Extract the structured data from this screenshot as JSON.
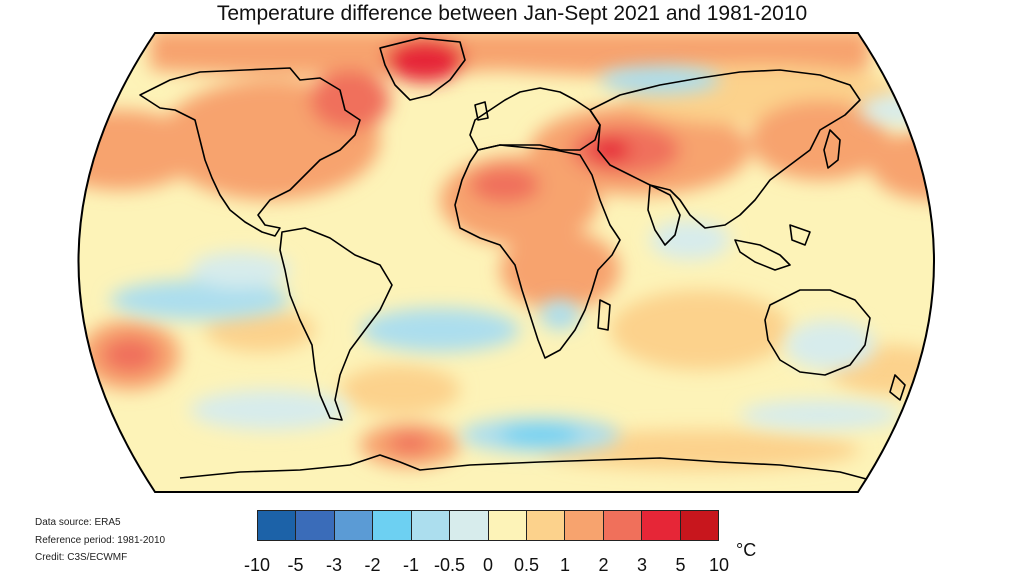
{
  "title": "Temperature difference between Jan-Sept 2021 and 1981-2010",
  "map": {
    "projection": "robinson",
    "ocean_base_color": "#fdf3b8",
    "coastline_color": "#000000"
  },
  "credits": {
    "data_source": "Data source: ERA5",
    "reference_period": "Reference period: 1981-2010",
    "credit": "Credit: C3S/ECWMF"
  },
  "legend": {
    "unit": "°C",
    "ticks": [
      "-10",
      "-5",
      "-3",
      "-2",
      "-1",
      "-0.5",
      "0",
      "0.5",
      "1",
      "2",
      "3",
      "5",
      "10"
    ],
    "colors": [
      "#1c62a8",
      "#3a6cb9",
      "#5b9bd5",
      "#6dd0f2",
      "#acdeee",
      "#d7ecec",
      "#fdf3b8",
      "#fcd28c",
      "#f7a36e",
      "#f0705b",
      "#e62637",
      "#c8161d"
    ]
  }
}
